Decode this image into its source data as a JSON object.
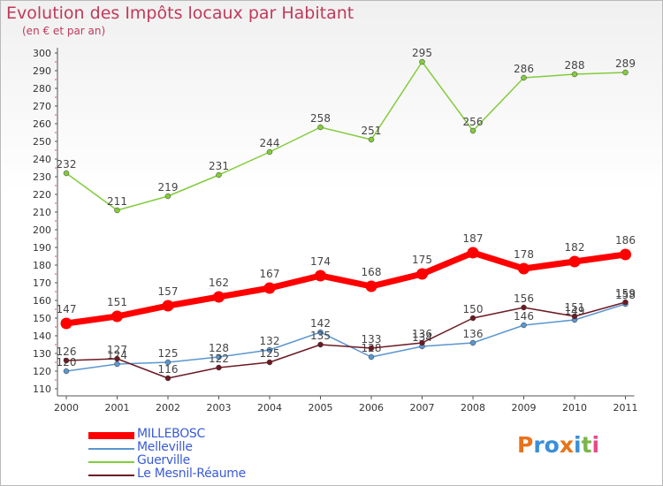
{
  "header": {
    "title": "Evolution des Impôts locaux par Habitant",
    "subtitle": "(en € et par an)"
  },
  "logo": {
    "text": "Proxiti",
    "colors": [
      "#e8731a",
      "#3b8fd6",
      "#3b8fd6",
      "#e8731a",
      "#3b8fd6",
      "#7ab648",
      "#e84a8a"
    ]
  },
  "chart_data": {
    "type": "line",
    "title": "Evolution des Impôts locaux par Habitant",
    "subtitle": "(en € et par an)",
    "xlabel": "",
    "ylabel": "",
    "x": [
      "2000",
      "2001",
      "2002",
      "2003",
      "2004",
      "2005",
      "2006",
      "2007",
      "2008",
      "2009",
      "2010",
      "2011"
    ],
    "ylim": [
      110,
      300
    ],
    "yticks": [
      110,
      120,
      130,
      140,
      150,
      160,
      170,
      180,
      190,
      200,
      210,
      220,
      230,
      240,
      250,
      260,
      270,
      280,
      290,
      300
    ],
    "grid": false,
    "legend_position": "bottom-left",
    "series": [
      {
        "name": "MILLEBOSC",
        "color": "#ff0000",
        "values": [
          147,
          151,
          157,
          162,
          167,
          174,
          168,
          175,
          187,
          178,
          182,
          186
        ]
      },
      {
        "name": "Melleville",
        "color": "#5a96cf",
        "values": [
          120,
          124,
          125,
          128,
          132,
          142,
          128,
          134,
          136,
          146,
          149,
          158
        ]
      },
      {
        "name": "Guerville",
        "color": "#82cc3c",
        "values": [
          232,
          211,
          219,
          231,
          244,
          258,
          251,
          295,
          256,
          286,
          288,
          289
        ]
      },
      {
        "name": "Le Mesnil-Réaume",
        "color": "#6b1a24",
        "values": [
          126,
          127,
          116,
          122,
          125,
          135,
          133,
          136,
          150,
          156,
          151,
          159
        ]
      }
    ]
  }
}
